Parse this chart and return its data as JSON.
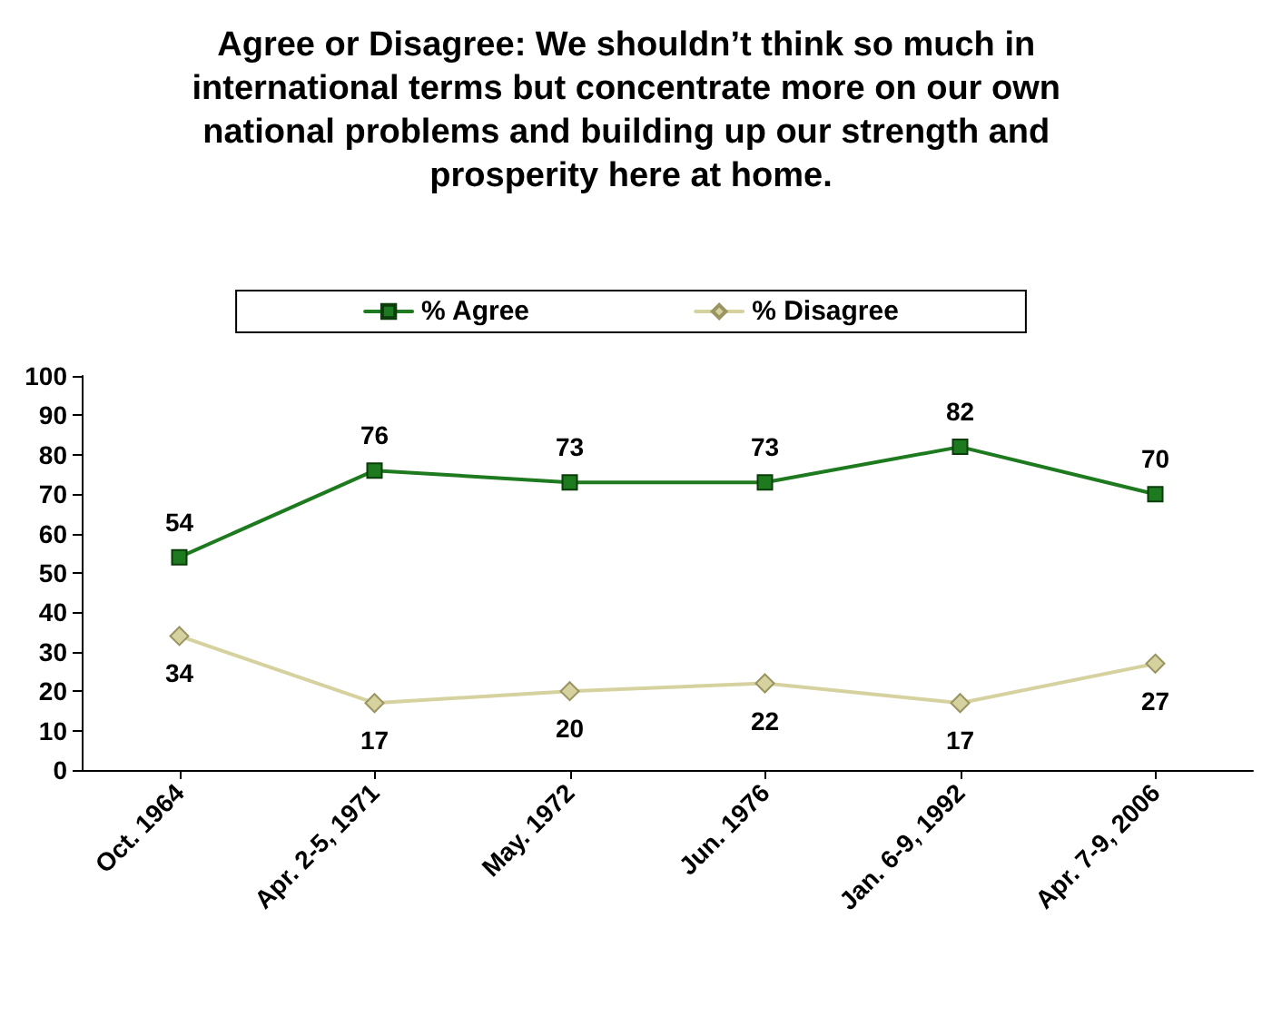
{
  "chart_data": {
    "type": "line",
    "title": "Agree or Disagree: We shouldn’t think so much in international terms but concentrate more on our own national problems and building up our strength and prosperity here at home.",
    "categories": [
      "Oct. 1964",
      "Apr. 2-5, 1971",
      "May. 1972",
      "Jun. 1976",
      "Jan. 6-9, 1992",
      "Apr. 7-9, 2006"
    ],
    "series": [
      {
        "name": "% Agree",
        "color": "#1e7a1e",
        "marker": "square",
        "values": [
          54,
          76,
          73,
          73,
          82,
          70
        ]
      },
      {
        "name": "% Disagree",
        "color": "#d6d2a0",
        "marker": "diamond",
        "values": [
          34,
          17,
          20,
          22,
          17,
          27
        ]
      }
    ],
    "ylim": [
      0,
      100
    ],
    "yticks": [
      0,
      10,
      20,
      30,
      40,
      50,
      60,
      70,
      80,
      90,
      100
    ],
    "grid": false,
    "legend": "top",
    "data_labels": true
  }
}
